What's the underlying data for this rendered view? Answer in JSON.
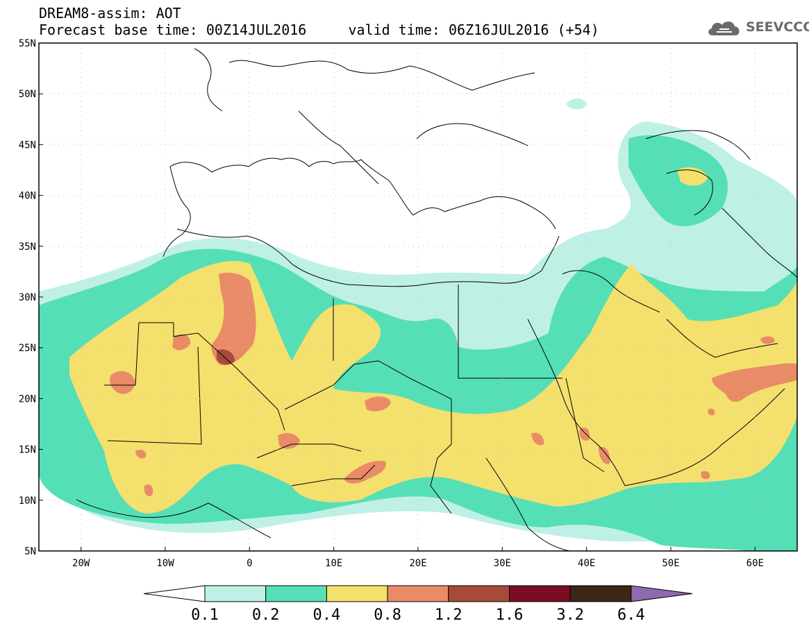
{
  "header": {
    "title_line1": "DREAM8-assim: AOT",
    "title_line2": "Forecast base time: 00Z14JUL2016     valid time: 06Z16JUL2016 (+54)"
  },
  "logo": {
    "text": "SEEVCCC",
    "icon": "cloud-icon",
    "color": "#6b6b6b"
  },
  "map": {
    "lon_range": [
      -25,
      65
    ],
    "lat_range": [
      5,
      55
    ],
    "lon_ticks": [
      {
        "lon": -20,
        "label": "20W"
      },
      {
        "lon": -10,
        "label": "10W"
      },
      {
        "lon": 0,
        "label": "0"
      },
      {
        "lon": 10,
        "label": "10E"
      },
      {
        "lon": 20,
        "label": "20E"
      },
      {
        "lon": 30,
        "label": "30E"
      },
      {
        "lon": 40,
        "label": "40E"
      },
      {
        "lon": 50,
        "label": "50E"
      },
      {
        "lon": 60,
        "label": "60E"
      }
    ],
    "lat_ticks": [
      {
        "lat": 55,
        "label": "55N"
      },
      {
        "lat": 50,
        "label": "50N"
      },
      {
        "lat": 45,
        "label": "45N"
      },
      {
        "lat": 40,
        "label": "40N"
      },
      {
        "lat": 35,
        "label": "35N"
      },
      {
        "lat": 30,
        "label": "30N"
      },
      {
        "lat": 25,
        "label": "25N"
      },
      {
        "lat": 20,
        "label": "20N"
      },
      {
        "lat": 15,
        "label": "15N"
      },
      {
        "lat": 10,
        "label": "10N"
      },
      {
        "lat": 5,
        "label": "5N"
      }
    ],
    "grid": true
  },
  "colorbar": {
    "levels": [
      "0.1",
      "0.2",
      "0.4",
      "0.8",
      "1.2",
      "1.6",
      "3.2",
      "6.4"
    ],
    "colors": [
      "#ffffff",
      "#bff0e6",
      "#55dfb6",
      "#f4e06d",
      "#e98b67",
      "#a74a39",
      "#7a0d24",
      "#3e2615",
      "#8e6ab0"
    ]
  }
}
